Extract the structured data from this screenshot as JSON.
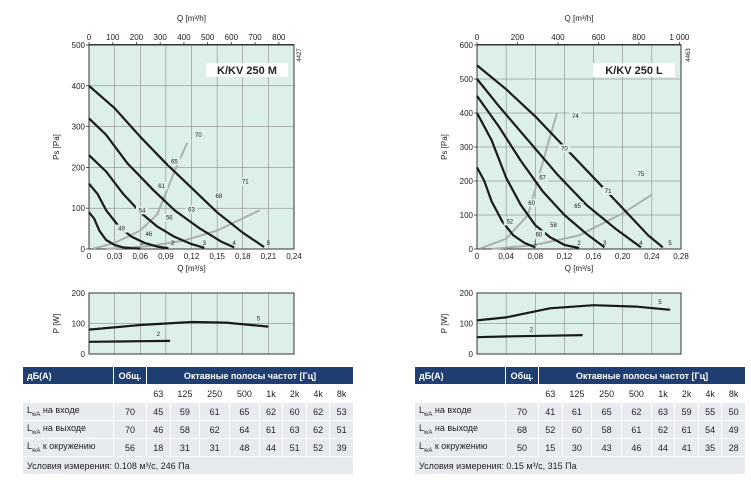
{
  "panels": [
    {
      "id": "m",
      "model": "K/KV 250 M",
      "code": "4427",
      "q_top_label": "Q [m³/h]",
      "q_bottom_label": "Q [m³/s]",
      "ps_label": "Ps [Pa]",
      "p_label": "P [W]",
      "top_ticks": [
        "0",
        "100",
        "200",
        "300",
        "400",
        "500",
        "600",
        "700",
        "800"
      ],
      "bottom_ticks": [
        "0",
        "0,03",
        "0,06",
        "0,09",
        "0,12",
        "0,15",
        "0,18",
        "0,21",
        "0,24"
      ],
      "ps_ticks": [
        "0",
        "100",
        "200",
        "300",
        "400",
        "500"
      ],
      "p_ticks": [
        "0",
        "100",
        "200"
      ],
      "table": {
        "headers": {
          "label": "дБ(А)",
          "total": "Общ.",
          "bands_title": "Октавные полосы частот [Гц]"
        },
        "bands": [
          "63",
          "125",
          "250",
          "500",
          "1k",
          "2k",
          "4k",
          "8k"
        ],
        "rows": [
          {
            "label_main": "L",
            "label_sub": "wA",
            "label_rest": " на входе",
            "total": "70",
            "values": [
              "45",
              "59",
              "61",
              "65",
              "62",
              "60",
              "62",
              "53"
            ]
          },
          {
            "label_main": "L",
            "label_sub": "wA",
            "label_rest": " на выходе",
            "total": "70",
            "values": [
              "46",
              "58",
              "62",
              "64",
              "61",
              "63",
              "62",
              "51"
            ]
          },
          {
            "label_main": "L",
            "label_sub": "wA",
            "label_rest": " к окружению",
            "total": "56",
            "values": [
              "18",
              "31",
              "31",
              "48",
              "44",
              "51",
              "52",
              "39"
            ]
          }
        ],
        "conditions": "Условия измерения: 0.108 м³/с, 246 Па"
      }
    },
    {
      "id": "l",
      "model": "K/KV 250 L",
      "code": "4463",
      "q_top_label": "Q [m³/h]",
      "q_bottom_label": "Q [m³/s]",
      "ps_label": "Ps [Pa]",
      "p_label": "P [W]",
      "top_ticks": [
        "0",
        "200",
        "400",
        "600",
        "800",
        "1 000"
      ],
      "bottom_ticks": [
        "0",
        "0,04",
        "0,08",
        "0,12",
        "0,16",
        "0,20",
        "0,24",
        "0,28"
      ],
      "ps_ticks": [
        "0",
        "100",
        "200",
        "300",
        "400",
        "500",
        "600"
      ],
      "p_ticks": [
        "0",
        "100",
        "200"
      ],
      "table": {
        "headers": {
          "label": "дБ(А)",
          "total": "Общ.",
          "bands_title": "Октавные полосы частот [Гц]"
        },
        "bands": [
          "63",
          "125",
          "250",
          "500",
          "1k",
          "2k",
          "4k",
          "8k"
        ],
        "rows": [
          {
            "label_main": "L",
            "label_sub": "wA",
            "label_rest": " на входе",
            "total": "70",
            "values": [
              "41",
              "61",
              "65",
              "62",
              "63",
              "59",
              "55",
              "50"
            ]
          },
          {
            "label_main": "L",
            "label_sub": "wA",
            "label_rest": " на выходе",
            "total": "68",
            "values": [
              "52",
              "60",
              "58",
              "61",
              "62",
              "61",
              "54",
              "49"
            ]
          },
          {
            "label_main": "L",
            "label_sub": "wA",
            "label_rest": " к окружению",
            "total": "50",
            "values": [
              "15",
              "30",
              "43",
              "46",
              "44",
              "41",
              "35",
              "28"
            ]
          }
        ],
        "conditions": "Условия измерения: 0.15 м³/с, 315 Па"
      }
    }
  ],
  "chart_data": [
    {
      "type": "line",
      "title": "K/KV 250 M",
      "xlabel": "Q [m³/s]",
      "ylabel": "Ps [Pa]",
      "xlim": [
        0,
        0.24
      ],
      "ylim": [
        0,
        500
      ],
      "grid": true,
      "series": [
        {
          "name": "1",
          "points": [
            [
              0,
              90
            ],
            [
              0.006,
              75
            ],
            [
              0.012,
              45
            ],
            [
              0.02,
              22
            ],
            [
              0.03,
              10
            ],
            [
              0.04,
              4
            ],
            [
              0.05,
              2
            ],
            [
              0.06,
              1
            ]
          ]
        },
        {
          "name": "2",
          "points": [
            [
              0,
              160
            ],
            [
              0.01,
              135
            ],
            [
              0.02,
              95
            ],
            [
              0.035,
              55
            ],
            [
              0.05,
              30
            ],
            [
              0.065,
              15
            ],
            [
              0.08,
              6
            ],
            [
              0.093,
              2
            ]
          ]
        },
        {
          "name": "3",
          "points": [
            [
              0,
              230
            ],
            [
              0.02,
              190
            ],
            [
              0.04,
              135
            ],
            [
              0.06,
              90
            ],
            [
              0.08,
              55
            ],
            [
              0.1,
              30
            ],
            [
              0.12,
              12
            ],
            [
              0.135,
              3
            ]
          ]
        },
        {
          "name": "4",
          "points": [
            [
              0,
              320
            ],
            [
              0.02,
              280
            ],
            [
              0.045,
              210
            ],
            [
              0.075,
              145
            ],
            [
              0.1,
              95
            ],
            [
              0.13,
              50
            ],
            [
              0.155,
              18
            ],
            [
              0.17,
              4
            ]
          ]
        },
        {
          "name": "5",
          "points": [
            [
              0,
              400
            ],
            [
              0.03,
              345
            ],
            [
              0.06,
              275
            ],
            [
              0.09,
              210
            ],
            [
              0.12,
              150
            ],
            [
              0.15,
              90
            ],
            [
              0.18,
              40
            ],
            [
              0.205,
              5
            ]
          ]
        }
      ],
      "system_lines": [
        {
          "points": [
            [
              0.005,
              1
            ],
            [
              0.03,
              15
            ],
            [
              0.06,
              45
            ],
            [
              0.08,
              85
            ],
            [
              0.1,
              190
            ],
            [
              0.115,
              260
            ]
          ]
        },
        {
          "points": [
            [
              0.02,
              0
            ],
            [
              0.07,
              7
            ],
            [
              0.11,
              20
            ],
            [
              0.15,
              45
            ],
            [
              0.2,
              95
            ]
          ]
        }
      ],
      "annotations": [
        "49",
        "54",
        "61",
        "65",
        "70",
        "46",
        "56",
        "63",
        "68",
        "71"
      ],
      "power": {
        "ylabel": "P [W]",
        "ylim": [
          0,
          200
        ],
        "series": [
          {
            "name": "5",
            "points": [
              [
                0,
                80
              ],
              [
                0.06,
                95
              ],
              [
                0.12,
                105
              ],
              [
                0.16,
                103
              ],
              [
                0.21,
                90
              ]
            ]
          },
          {
            "name": "2",
            "points": [
              [
                0,
                40
              ],
              [
                0.06,
                42
              ],
              [
                0.095,
                43
              ]
            ]
          }
        ]
      }
    },
    {
      "type": "line",
      "title": "K/KV 250 L",
      "xlabel": "Q [m³/s]",
      "ylabel": "Ps [Pa]",
      "xlim": [
        0,
        0.28
      ],
      "ylim": [
        0,
        600
      ],
      "grid": true,
      "series": [
        {
          "name": "1",
          "points": [
            [
              0,
              240
            ],
            [
              0.01,
              200
            ],
            [
              0.02,
              140
            ],
            [
              0.035,
              80
            ],
            [
              0.05,
              40
            ],
            [
              0.065,
              18
            ],
            [
              0.08,
              5
            ]
          ]
        },
        {
          "name": "2",
          "points": [
            [
              0,
              400
            ],
            [
              0.02,
              320
            ],
            [
              0.04,
              210
            ],
            [
              0.06,
              130
            ],
            [
              0.08,
              70
            ],
            [
              0.1,
              35
            ],
            [
              0.12,
              12
            ],
            [
              0.14,
              3
            ]
          ]
        },
        {
          "name": "3",
          "points": [
            [
              0,
              450
            ],
            [
              0.03,
              360
            ],
            [
              0.06,
              260
            ],
            [
              0.09,
              170
            ],
            [
              0.12,
              100
            ],
            [
              0.15,
              45
            ],
            [
              0.175,
              5
            ]
          ]
        },
        {
          "name": "4",
          "points": [
            [
              0,
              500
            ],
            [
              0.03,
              420
            ],
            [
              0.07,
              320
            ],
            [
              0.11,
              220
            ],
            [
              0.15,
              130
            ],
            [
              0.19,
              60
            ],
            [
              0.225,
              5
            ]
          ]
        },
        {
          "name": "5",
          "points": [
            [
              0,
              540
            ],
            [
              0.04,
              470
            ],
            [
              0.08,
              390
            ],
            [
              0.12,
              300
            ],
            [
              0.16,
              210
            ],
            [
              0.2,
              120
            ],
            [
              0.235,
              40
            ],
            [
              0.255,
              5
            ]
          ]
        }
      ],
      "system_lines": [
        {
          "points": [
            [
              0.005,
              2
            ],
            [
              0.04,
              30
            ],
            [
              0.07,
              100
            ],
            [
              0.1,
              330
            ],
            [
              0.11,
              400
            ]
          ]
        },
        {
          "points": [
            [
              0.02,
              0
            ],
            [
              0.08,
              12
            ],
            [
              0.14,
              40
            ],
            [
              0.2,
              105
            ],
            [
              0.24,
              160
            ]
          ]
        }
      ],
      "annotations": [
        "52",
        "60",
        "67",
        "70",
        "74",
        "60",
        "58",
        "65",
        "71",
        "75"
      ],
      "power": {
        "ylabel": "P [W]",
        "ylim": [
          0,
          200
        ],
        "series": [
          {
            "name": "5",
            "points": [
              [
                0,
                110
              ],
              [
                0.04,
                120
              ],
              [
                0.1,
                150
              ],
              [
                0.16,
                160
              ],
              [
                0.22,
                155
              ],
              [
                0.265,
                145
              ]
            ]
          },
          {
            "name": "2",
            "points": [
              [
                0,
                55
              ],
              [
                0.05,
                58
              ],
              [
                0.1,
                60
              ],
              [
                0.145,
                62
              ]
            ]
          }
        ]
      }
    }
  ]
}
